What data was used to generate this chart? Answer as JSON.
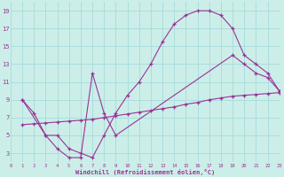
{
  "bg_color": "#cceee8",
  "line_color": "#993399",
  "grid_color": "#aadddd",
  "xlim": [
    0,
    23
  ],
  "ylim": [
    2,
    20
  ],
  "xticks": [
    0,
    1,
    2,
    3,
    4,
    5,
    6,
    7,
    8,
    9,
    10,
    11,
    12,
    13,
    14,
    15,
    16,
    17,
    18,
    19,
    20,
    21,
    22,
    23
  ],
  "yticks": [
    3,
    5,
    7,
    9,
    11,
    13,
    15,
    17,
    19
  ],
  "xlabel": "Windchill (Refroidissement éolien,°C)",
  "line1_x": [
    1,
    2,
    3,
    4,
    5,
    6,
    7,
    8,
    9,
    10,
    11,
    12,
    13,
    14,
    15,
    16,
    17,
    18,
    19,
    20,
    21,
    22,
    23
  ],
  "line1_y": [
    9.0,
    7.5,
    5.0,
    5.0,
    3.5,
    3.0,
    2.5,
    5.0,
    7.5,
    9.5,
    11.0,
    13.0,
    15.5,
    17.5,
    18.5,
    19.0,
    19.0,
    18.5,
    17.0,
    14.0,
    13.0,
    12.0,
    10.0
  ],
  "line2_x": [
    1,
    2,
    3,
    4,
    5,
    6,
    7,
    8,
    9,
    10,
    11,
    12,
    13,
    14,
    15,
    16,
    17,
    18,
    19,
    20,
    21,
    22,
    23
  ],
  "line2_y": [
    6.2,
    6.3,
    6.4,
    6.5,
    6.6,
    6.7,
    6.8,
    7.0,
    7.2,
    7.4,
    7.6,
    7.8,
    8.0,
    8.2,
    8.5,
    8.7,
    9.0,
    9.2,
    9.4,
    9.5,
    9.6,
    9.7,
    9.8
  ],
  "line3_x": [
    1,
    3,
    4,
    5,
    6,
    7,
    8,
    9,
    19,
    20,
    21,
    22,
    23
  ],
  "line3_y": [
    9.0,
    5.0,
    3.5,
    2.5,
    2.5,
    12.0,
    7.5,
    5.0,
    14.0,
    13.0,
    12.0,
    11.5,
    10.0
  ]
}
